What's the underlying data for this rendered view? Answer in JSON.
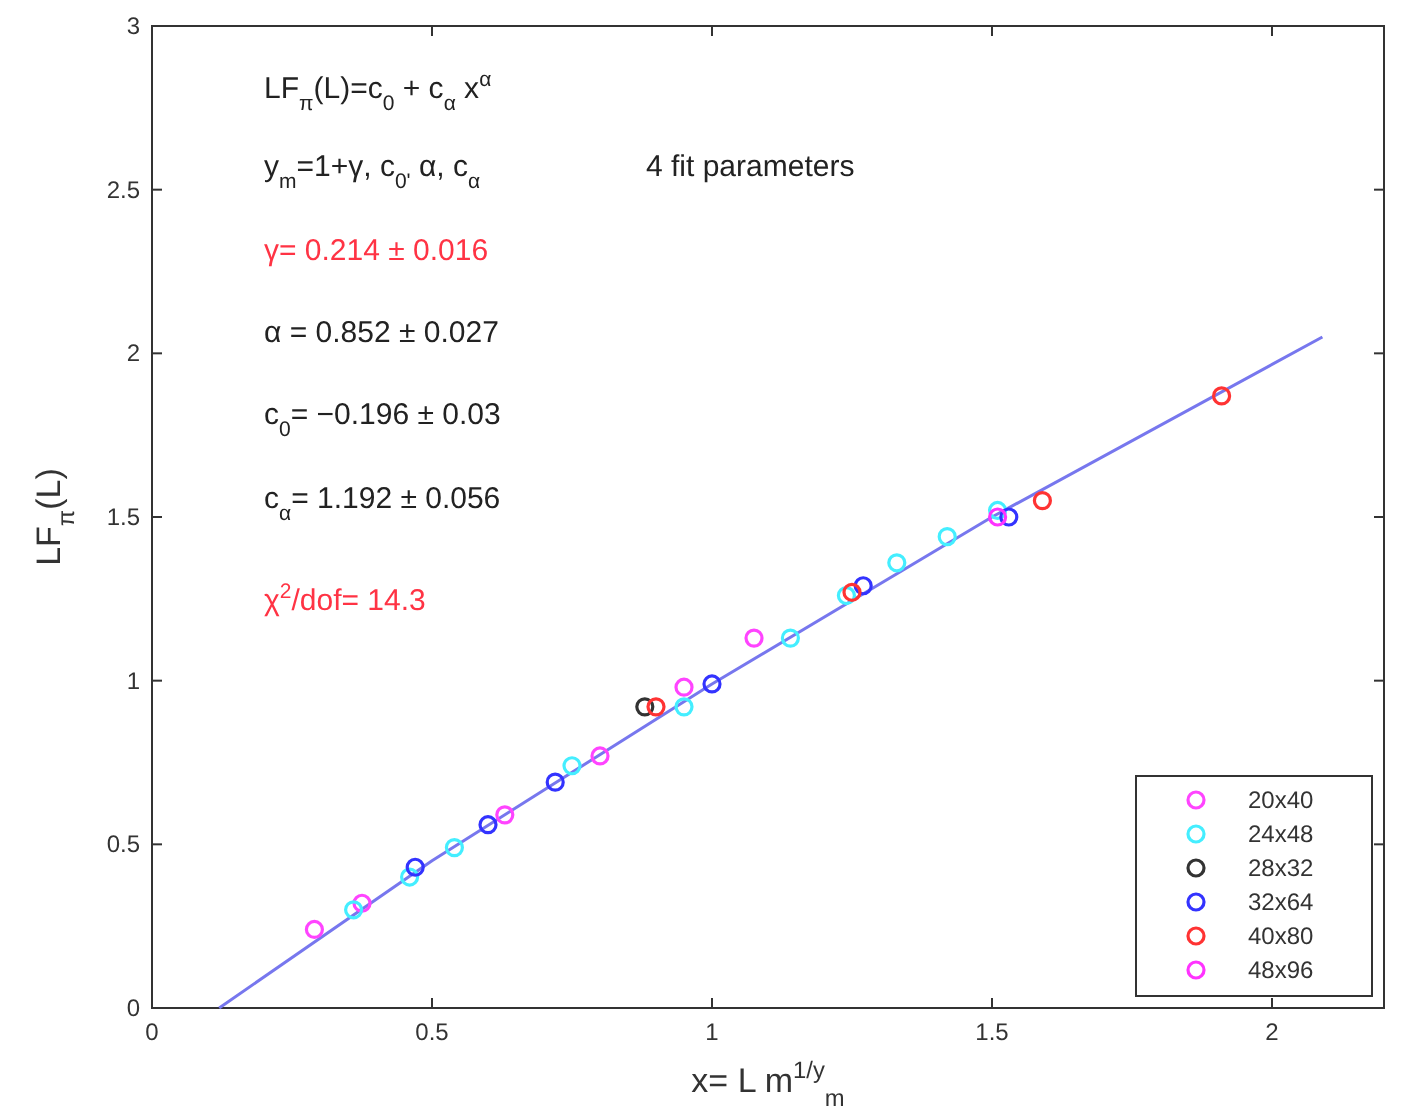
{
  "chart_data": {
    "type": "scatter",
    "xlabel": "x= L m$^{1/y}$$_{m}$",
    "ylabel": "LF$_{π}$(L)",
    "xlim": [
      0,
      2.2
    ],
    "ylim": [
      0,
      3
    ],
    "xticks": [
      0,
      0.5,
      1,
      1.5,
      2
    ],
    "yticks": [
      0,
      0.5,
      1,
      1.5,
      2,
      2.5,
      3
    ],
    "marker": "circle",
    "grid": false,
    "legend": "bottom right",
    "annotations": [
      "LF$_{π}$(L)=c$_{0}$ + c$_{α}$ x$^{α}$",
      "y$_{m}$=1+γ, c$_{0'}$ α, c$_{α}$",
      "4 fit parameters",
      "γ= 0.214 ± 0.016",
      "α = 0.852 ± 0.027",
      "c$_{0}$= −0.196 ± 0.03",
      "c$_{α}$= 1.192 ± 0.056",
      "χ$^{2}$/dof= 14.3"
    ],
    "series": [
      {
        "name": "20x40",
        "color": "#ff44ff",
        "x": [
          0.29,
          0.375,
          0.63,
          0.8,
          0.95,
          1.075
        ],
        "values": [
          0.24,
          0.32,
          0.59,
          0.77,
          0.98,
          1.13
        ]
      },
      {
        "name": "24x48",
        "color": "#44eeff",
        "x": [
          0.36,
          0.46,
          0.54,
          0.75,
          0.95,
          1.14,
          1.24,
          1.33,
          1.42,
          1.51
        ],
        "values": [
          0.3,
          0.4,
          0.49,
          0.74,
          0.92,
          1.13,
          1.26,
          1.36,
          1.44,
          1.52
        ]
      },
      {
        "name": "28x32",
        "color": "#333333",
        "x": [
          0.88
        ],
        "values": [
          0.92
        ]
      },
      {
        "name": "32x64",
        "color": "#3333ff",
        "x": [
          0.47,
          0.6,
          0.72,
          1.0,
          1.27,
          1.53
        ],
        "values": [
          0.43,
          0.56,
          0.69,
          0.99,
          1.29,
          1.5
        ]
      },
      {
        "name": "40x80",
        "color": "#ff3333",
        "x": [
          0.9,
          1.25,
          1.59,
          1.91
        ],
        "values": [
          0.92,
          1.27,
          1.55,
          1.87
        ]
      },
      {
        "name": "48x96",
        "color": "#ff33ff",
        "x": [
          1.51
        ],
        "values": [
          1.5
        ]
      },
      {
        "type": "line",
        "color": "#7777ee",
        "marker": "none",
        "x": [
          0.12,
          0.5,
          1,
          1.5,
          2.09
        ],
        "values": [
          0,
          0.45,
          0.99,
          1.5,
          2.05
        ]
      }
    ]
  }
}
